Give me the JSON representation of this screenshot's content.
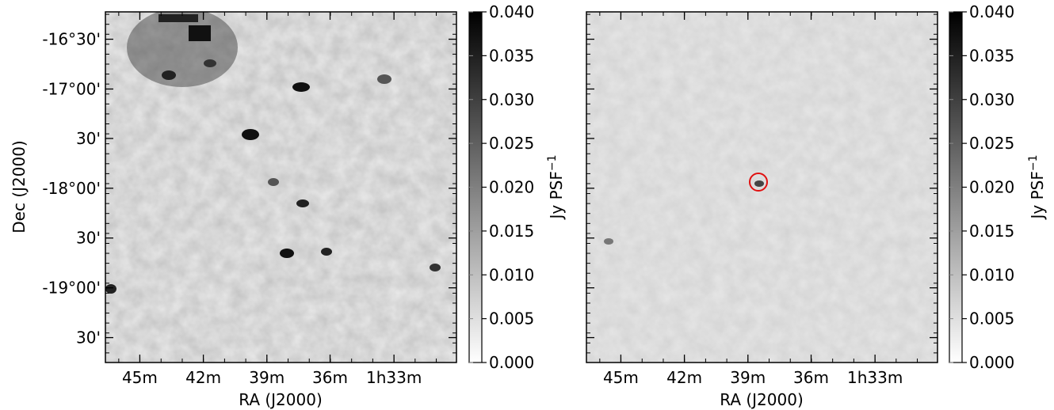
{
  "chart_data": [
    {
      "type": "heatmap",
      "xlabel": "RA (J2000)",
      "ylabel": "Dec (J2000)",
      "x_ticks": [
        "45m",
        "42m",
        "39m",
        "36m",
        "1h33m"
      ],
      "y_ticks": [
        "-16°30'",
        "-17°00'",
        "30'",
        "-18°00'",
        "30'",
        "-19°00'",
        "30'"
      ],
      "colorbar": {
        "label": "Jy PSF",
        "label_exponent": "−1",
        "min": 0.0,
        "max": 0.04,
        "ticks": [
          "0.040",
          "0.035",
          "0.030",
          "0.025",
          "0.020",
          "0.015",
          "0.010",
          "0.005",
          "0.000"
        ],
        "colormap": "white-to-black (grayscale)"
      },
      "background": "noise map with bright sources concentrated toward the upper-left"
    },
    {
      "type": "heatmap",
      "xlabel": "RA (J2000)",
      "ylabel": "",
      "x_ticks": [
        "45m",
        "42m",
        "39m",
        "36m",
        "1h33m"
      ],
      "y_ticks": [],
      "colorbar": {
        "label": "Jy PSF",
        "label_exponent": "−1",
        "min": 0.0,
        "max": 0.04,
        "ticks": [
          "0.040",
          "0.035",
          "0.030",
          "0.025",
          "0.020",
          "0.015",
          "0.010",
          "0.005",
          "0.000"
        ],
        "colormap": "white-to-black (grayscale)"
      },
      "marker": {
        "shape": "circle",
        "color": "#e01010",
        "location": "single faint source near RA 39m, Dec -18°00'"
      },
      "background": "residual noise map with uniform gray texture"
    }
  ]
}
